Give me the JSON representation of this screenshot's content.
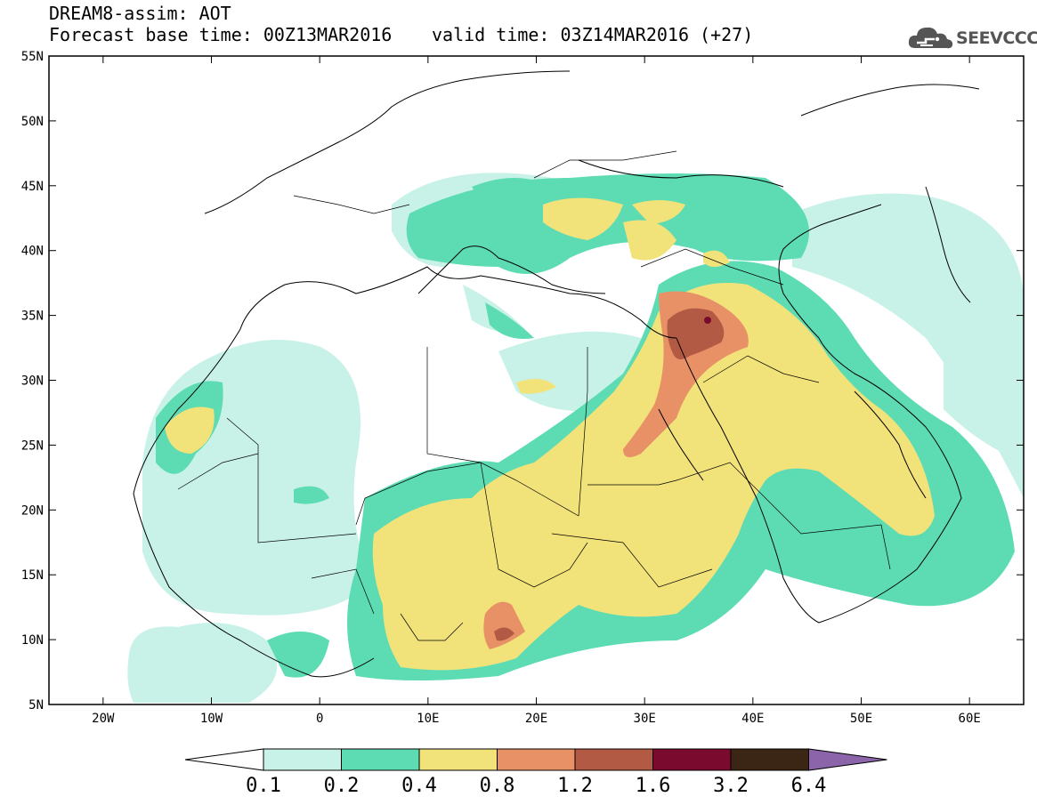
{
  "header": {
    "title": "DREAM8-assim: AOT",
    "forecast_base": "Forecast base time: 00Z13MAR2016",
    "valid_time": "valid time: 03Z14MAR2016 (+27)"
  },
  "logo": {
    "text": "SEEVCCC",
    "icon": "cloud-icon"
  },
  "map": {
    "lon_range": [
      -25,
      65
    ],
    "lat_range": [
      5,
      55
    ],
    "lat_ticks": [
      {
        "value": 55,
        "label": "55N"
      },
      {
        "value": 50,
        "label": "50N"
      },
      {
        "value": 45,
        "label": "45N"
      },
      {
        "value": 40,
        "label": "40N"
      },
      {
        "value": 35,
        "label": "35N"
      },
      {
        "value": 30,
        "label": "30N"
      },
      {
        "value": 25,
        "label": "25N"
      },
      {
        "value": 20,
        "label": "20N"
      },
      {
        "value": 15,
        "label": "15N"
      },
      {
        "value": 10,
        "label": "10N"
      },
      {
        "value": 5,
        "label": "5N"
      }
    ],
    "lon_ticks": [
      {
        "value": -20,
        "label": "20W"
      },
      {
        "value": -10,
        "label": "10W"
      },
      {
        "value": 0,
        "label": "0"
      },
      {
        "value": 10,
        "label": "10E"
      },
      {
        "value": 20,
        "label": "20E"
      },
      {
        "value": 30,
        "label": "30E"
      },
      {
        "value": 40,
        "label": "40E"
      },
      {
        "value": 50,
        "label": "50E"
      },
      {
        "value": 60,
        "label": "60E"
      }
    ]
  },
  "legend": {
    "colors": [
      "#ffffff",
      "#c8f2e8",
      "#5ddcb4",
      "#f2e27a",
      "#e89066",
      "#b35a44",
      "#7a0a2e",
      "#3b2616",
      "#8c64aa"
    ],
    "labels": [
      "0.1",
      "0.2",
      "0.4",
      "0.8",
      "1.2",
      "1.6",
      "3.2",
      "6.4"
    ]
  }
}
